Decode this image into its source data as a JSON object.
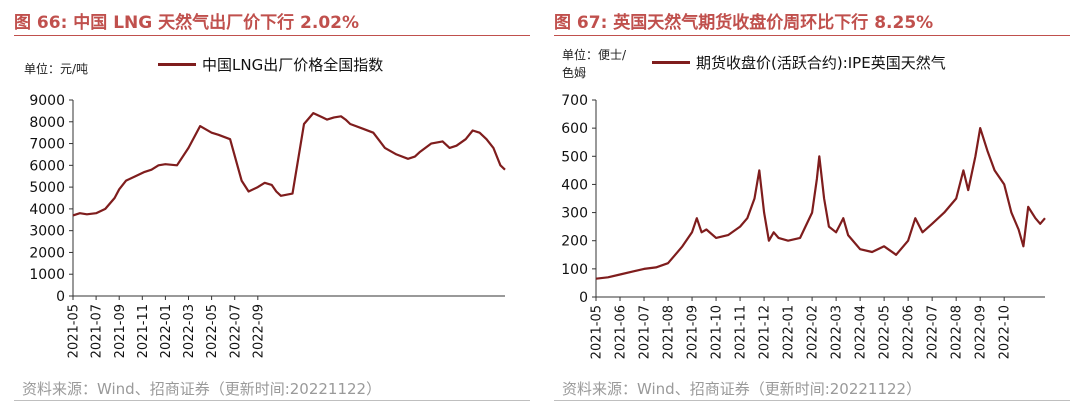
{
  "colors": {
    "title": "#c0504d",
    "series": "#7f1d1d",
    "axis": "#333333",
    "source": "#9a9a9a"
  },
  "left": {
    "title": "图 66:  中国 LNG 天然气出厂价下行 2.02%",
    "unit": "单位：元/吨",
    "legend": "中国LNG出厂价格全国指数",
    "source": "资料来源：Wind、招商证券（更新时间:20221122）"
  },
  "right": {
    "title": "图 67:  英国天然气期货收盘价周环比下行 8.25%",
    "unit_line1": "单位：便士/",
    "unit_line2": "色姆",
    "legend": "期货收盘价(活跃合约):IPE英国天然气",
    "source": "资料来源：Wind、招商证券（更新时间:20221122）"
  },
  "chart_data": [
    {
      "type": "line",
      "title": "中国 LNG 天然气出厂价下行 2.02%",
      "ylabel": "元/吨",
      "ylim": [
        0,
        9000
      ],
      "yticks": [
        0,
        1000,
        2000,
        3000,
        4000,
        5000,
        6000,
        7000,
        8000,
        9000
      ],
      "xlim": [
        0,
        18.7
      ],
      "xtick_labels": [
        "2021-05",
        "2021-07",
        "2021-09",
        "2021-11",
        "2022-01",
        "2022-03",
        "2022-05",
        "2022-07",
        "2022-09"
      ],
      "series": [
        {
          "name": "中国LNG出厂价格全国指数",
          "x": [
            0,
            0.3,
            0.6,
            1.0,
            1.4,
            1.8,
            2.0,
            2.3,
            2.7,
            3.1,
            3.4,
            3.7,
            4.0,
            4.5,
            5.0,
            5.5,
            6.0,
            6.3,
            6.8,
            7.3,
            7.6,
            8.0,
            8.3,
            8.6,
            8.8,
            9.0,
            9.5,
            10.0,
            10.4,
            10.8,
            11.0,
            11.3,
            11.6,
            11.8,
            12.0,
            12.5,
            13.0,
            13.5,
            14.0,
            14.5,
            14.8,
            15.0,
            15.5,
            16.0,
            16.3,
            16.6,
            17.0,
            17.3,
            17.6,
            17.9,
            18.2,
            18.5,
            18.7
          ],
          "values": [
            3700,
            3800,
            3750,
            3800,
            4000,
            4500,
            4900,
            5300,
            5500,
            5700,
            5800,
            6000,
            6050,
            6000,
            6800,
            7800,
            7500,
            7400,
            7200,
            5300,
            4800,
            5000,
            5200,
            5100,
            4800,
            4600,
            4700,
            7900,
            8400,
            8200,
            8100,
            8200,
            8250,
            8100,
            7900,
            7700,
            7500,
            6800,
            6500,
            6300,
            6400,
            6600,
            7000,
            7100,
            6800,
            6900,
            7200,
            7600,
            7500,
            7200,
            6800,
            6000,
            5800
          ]
        }
      ]
    },
    {
      "type": "line",
      "title": "英国天然气期货收盘价周环比下行 8.25%",
      "ylabel": "便士/色姆",
      "ylim": [
        0,
        700
      ],
      "yticks": [
        0,
        100,
        200,
        300,
        400,
        500,
        600,
        700
      ],
      "xlim": [
        0,
        18.7
      ],
      "xtick_labels": [
        "2021-05",
        "2021-06",
        "2021-07",
        "2021-08",
        "2021-09",
        "2021-10",
        "2021-11",
        "2021-12",
        "2022-01",
        "2022-02",
        "2022-03",
        "2022-04",
        "2022-05",
        "2022-06",
        "2022-07",
        "2022-08",
        "2022-09",
        "2022-10"
      ],
      "series": [
        {
          "name": "期货收盘价(活跃合约):IPE英国天然气",
          "x": [
            0,
            0.5,
            1.0,
            1.5,
            2.0,
            2.5,
            3.0,
            3.3,
            3.6,
            4.0,
            4.2,
            4.4,
            4.6,
            5.0,
            5.5,
            6.0,
            6.3,
            6.6,
            6.8,
            7.0,
            7.2,
            7.4,
            7.6,
            8.0,
            8.5,
            9.0,
            9.2,
            9.3,
            9.5,
            9.7,
            10.0,
            10.3,
            10.5,
            11.0,
            11.5,
            12.0,
            12.5,
            13.0,
            13.3,
            13.6,
            14.0,
            14.5,
            15.0,
            15.3,
            15.5,
            15.8,
            16.0,
            16.3,
            16.6,
            17.0,
            17.3,
            17.6,
            17.8,
            18.0,
            18.3,
            18.5,
            18.7
          ],
          "values": [
            65,
            70,
            80,
            90,
            100,
            105,
            120,
            150,
            180,
            230,
            280,
            230,
            240,
            210,
            220,
            250,
            280,
            350,
            450,
            300,
            200,
            230,
            210,
            200,
            210,
            300,
            420,
            500,
            350,
            250,
            230,
            280,
            220,
            170,
            160,
            180,
            150,
            200,
            280,
            230,
            260,
            300,
            350,
            450,
            380,
            500,
            600,
            520,
            450,
            400,
            300,
            240,
            180,
            320,
            280,
            260,
            280
          ]
        }
      ]
    }
  ]
}
